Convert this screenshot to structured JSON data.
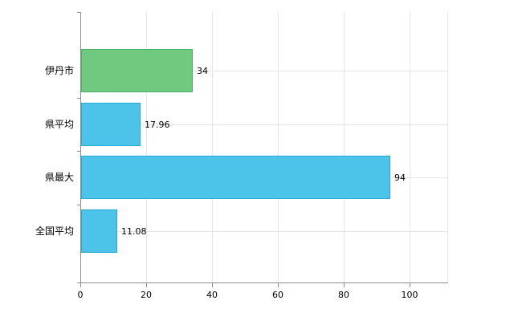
{
  "chart_data": {
    "type": "bar",
    "orientation": "horizontal",
    "title": "",
    "categories": [
      "伊丹市",
      "県平均",
      "県最大",
      "全国平均"
    ],
    "values": [
      34,
      17.96,
      94,
      11.08
    ],
    "value_labels": [
      "34",
      "17.96",
      "94",
      "11.08"
    ],
    "series": [
      {
        "name": "value",
        "values": [
          34,
          17.96,
          94,
          11.08
        ]
      }
    ],
    "bar_fill_colors": [
      "#6fca80",
      "#4cc4ea",
      "#4cc4ea",
      "#4cc4ea"
    ],
    "bar_border_colors": [
      "#47b261",
      "#27aad6",
      "#27aad6",
      "#27aad6"
    ],
    "xticks": [
      0,
      20,
      40,
      60,
      80,
      100
    ],
    "xtick_labels": [
      "0",
      "20",
      "40",
      "60",
      "80",
      "100"
    ],
    "xlim": [
      0,
      111.5
    ],
    "grid": true,
    "legend": false,
    "axis_color": "#8c8c8c",
    "grid_color": "#e4e4e4",
    "text_color": "#000000",
    "background_color": "#ffffff"
  }
}
